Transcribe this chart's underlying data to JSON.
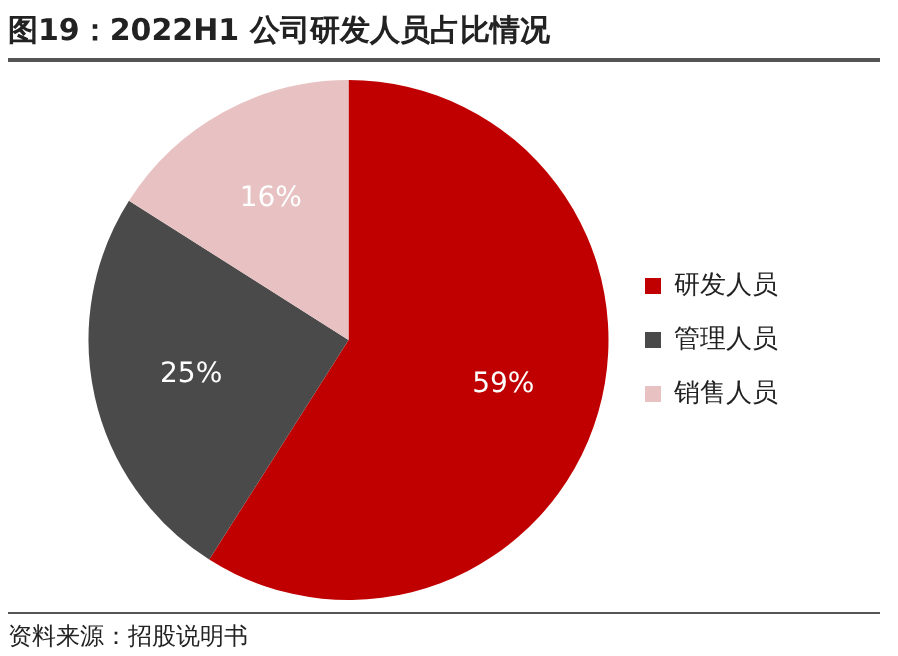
{
  "chart_data": {
    "type": "pie",
    "title": "图19：2022H1 公司研发人员占比情况",
    "categories": [
      "研发人员",
      "管理人员",
      "销售人员"
    ],
    "values": [
      59,
      25,
      16
    ],
    "value_labels": [
      "59%",
      "25%",
      "16%"
    ],
    "colors": [
      "#c00000",
      "#4a4a4a",
      "#e8c2c2"
    ],
    "legend": "right",
    "annotations": [
      "资料来源：招股说明书"
    ]
  }
}
